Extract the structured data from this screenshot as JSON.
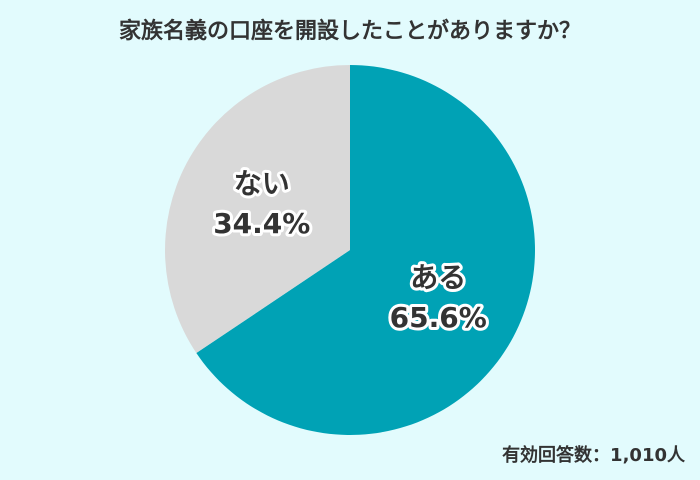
{
  "chart_data": {
    "type": "pie",
    "title": "家族名義の口座を開設したことがありますか？",
    "categories": [
      "ある",
      "ない"
    ],
    "values": [
      65.6,
      34.4
    ],
    "value_labels": [
      "65.6%",
      "34.4%"
    ],
    "colors": [
      "#00a2b5",
      "#d9d9d9"
    ],
    "note": "有効回答数：1,010人"
  }
}
